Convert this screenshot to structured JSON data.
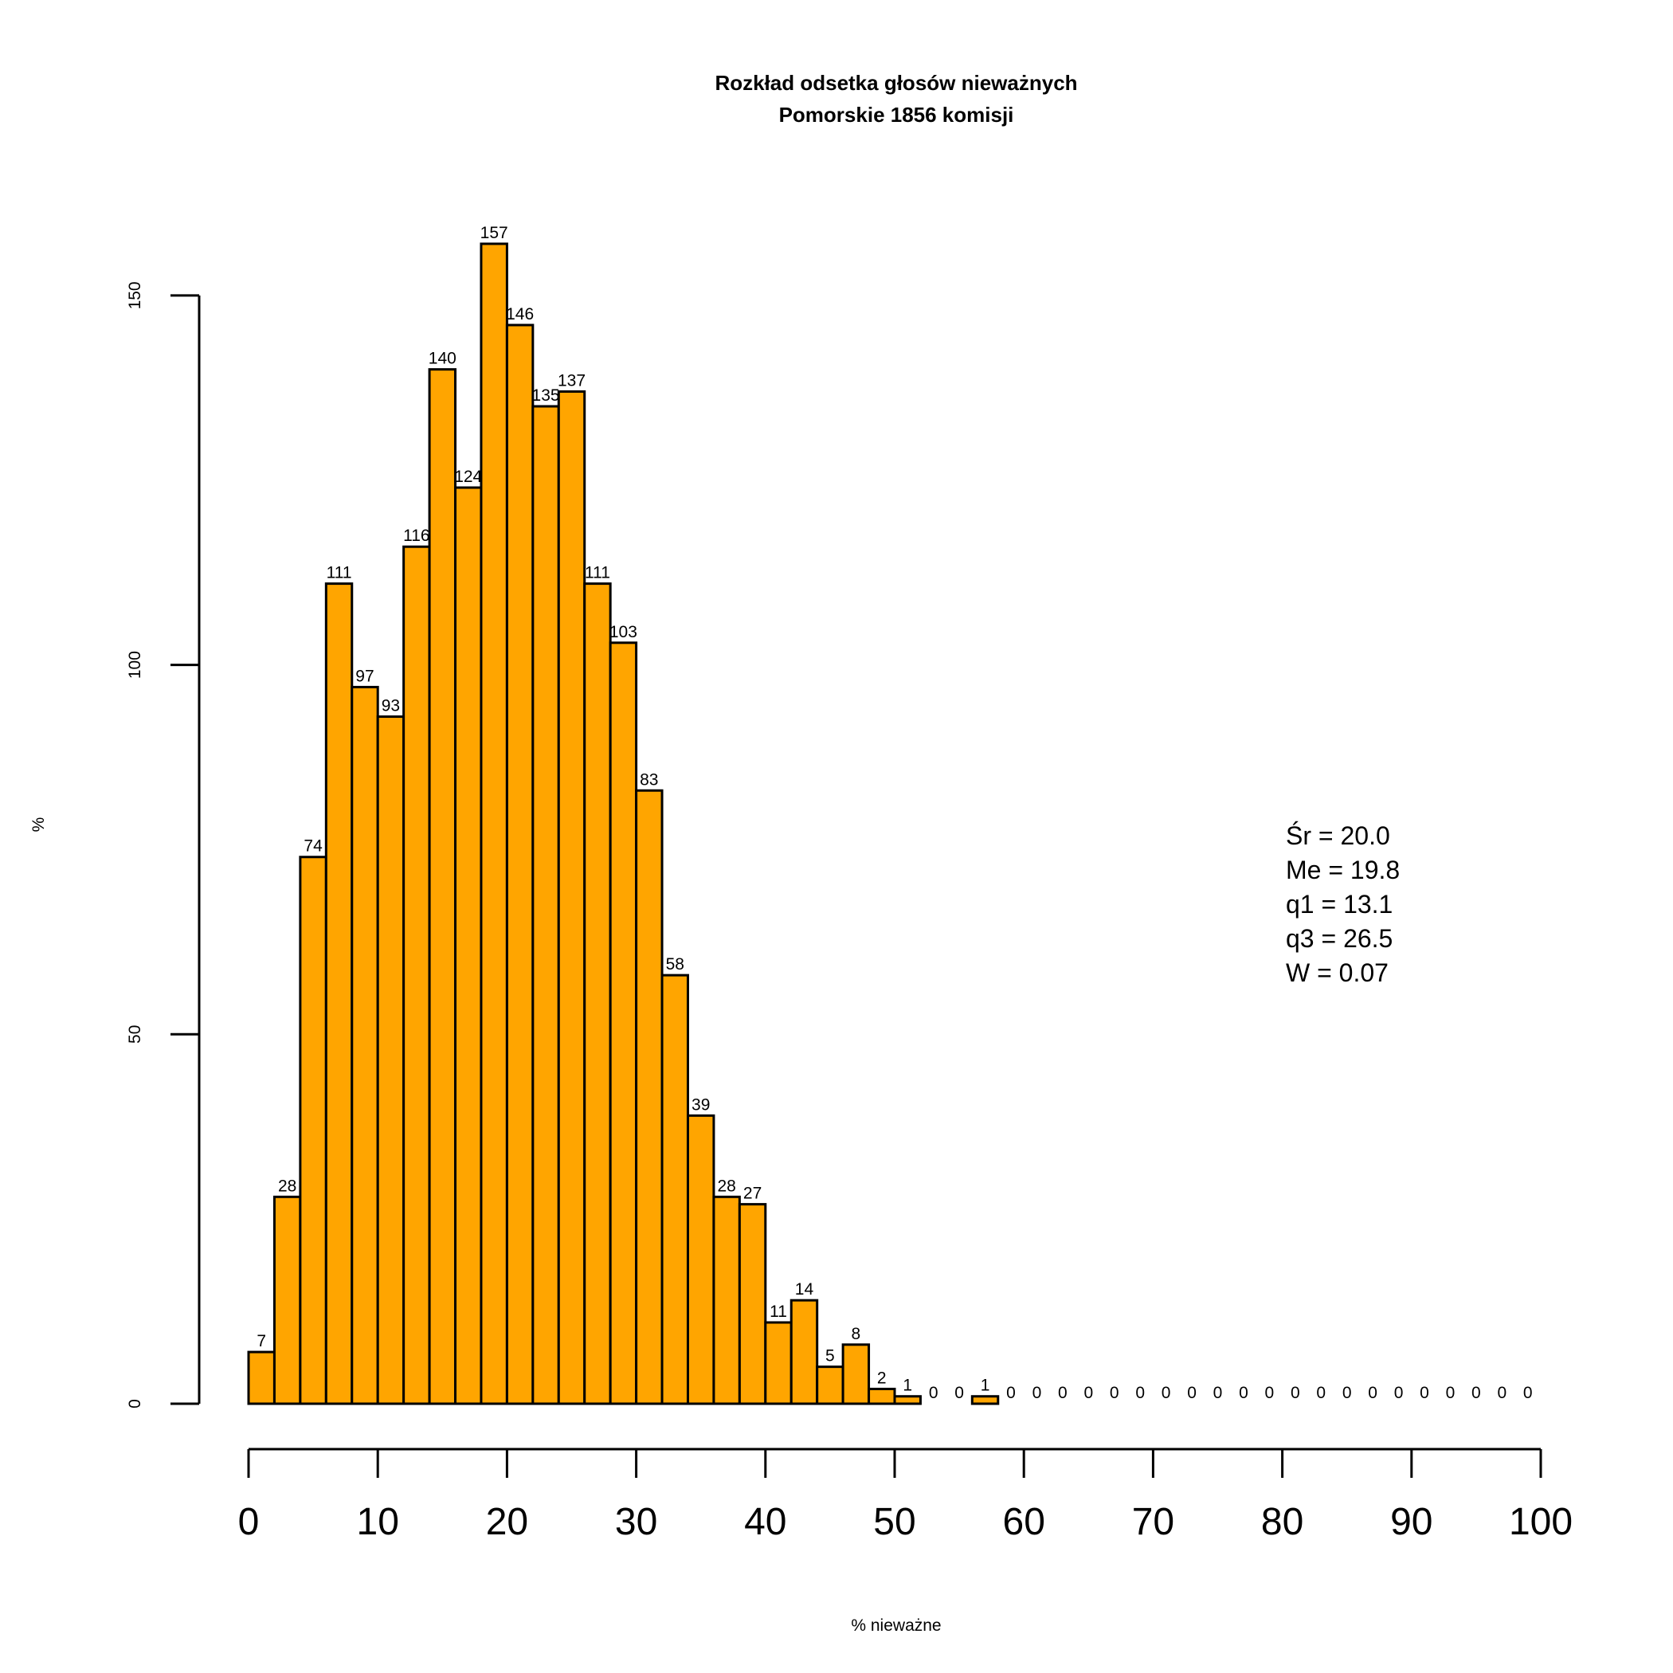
{
  "chart_data": {
    "type": "bar",
    "title": "Rozkład odsetka głosów nieważnych",
    "subtitle": "Pomorskie 1856 komisji",
    "xlabel": "% nieważne",
    "ylabel": "%",
    "bin_width": 2,
    "bin_start": 0,
    "values": [
      7,
      28,
      74,
      111,
      97,
      93,
      116,
      140,
      124,
      157,
      146,
      135,
      137,
      111,
      103,
      83,
      58,
      39,
      28,
      27,
      11,
      14,
      5,
      8,
      2,
      1,
      0,
      0,
      1,
      0,
      0,
      0,
      0,
      0,
      0,
      0,
      0,
      0,
      0,
      0,
      0,
      0,
      0,
      0,
      0,
      0,
      0,
      0,
      0,
      0
    ],
    "ylim": [
      0,
      157
    ],
    "yticks": [
      0,
      50,
      100,
      150
    ],
    "xlim": [
      0,
      100
    ],
    "xticks": [
      0,
      10,
      20,
      30,
      40,
      50,
      60,
      70,
      80,
      90,
      100
    ],
    "bar_color": "#FFA500",
    "stats": [
      "Śr = 20.0",
      "Me = 19.8",
      "q1 = 13.1",
      "q3 = 26.5",
      "W = 0.07"
    ],
    "stats_placement": "right"
  }
}
